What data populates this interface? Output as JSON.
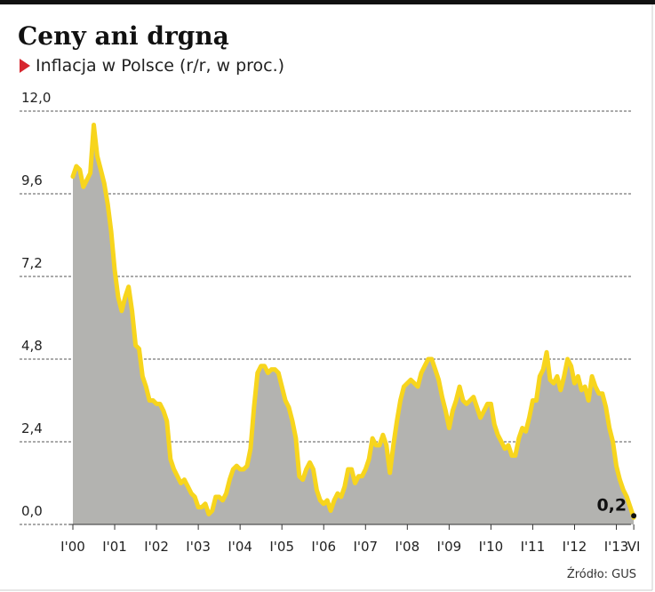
{
  "chart_data": {
    "type": "area-line",
    "title": "Ceny ani drgną",
    "subtitle": "Inflacja w Polsce (r/r, w proc.)",
    "source": "Źródło: GUS",
    "categories": [
      "I'00",
      null,
      null,
      null,
      null,
      null,
      null,
      null,
      null,
      null,
      null,
      null,
      "I'01",
      null,
      null,
      null,
      null,
      null,
      null,
      null,
      null,
      null,
      null,
      null,
      "I'02",
      null,
      null,
      null,
      null,
      null,
      null,
      null,
      null,
      null,
      null,
      null,
      "I'03",
      null,
      null,
      null,
      null,
      null,
      null,
      null,
      null,
      null,
      null,
      null,
      "I'04",
      null,
      null,
      null,
      null,
      null,
      null,
      null,
      null,
      null,
      null,
      null,
      "I'05",
      null,
      null,
      null,
      null,
      null,
      null,
      null,
      null,
      null,
      null,
      null,
      "I'06",
      null,
      null,
      null,
      null,
      null,
      null,
      null,
      null,
      null,
      null,
      null,
      "I'07",
      null,
      null,
      null,
      null,
      null,
      null,
      null,
      null,
      null,
      null,
      null,
      "I'08",
      null,
      null,
      null,
      null,
      null,
      null,
      null,
      null,
      null,
      null,
      null,
      "I'09",
      null,
      null,
      null,
      null,
      null,
      null,
      null,
      null,
      null,
      null,
      null,
      "I'10",
      null,
      null,
      null,
      null,
      null,
      null,
      null,
      null,
      null,
      null,
      null,
      "I'11",
      null,
      null,
      null,
      null,
      null,
      null,
      null,
      null,
      null,
      null,
      null,
      "I'12",
      null,
      null,
      null,
      null,
      null,
      null,
      null,
      null,
      null,
      null,
      null,
      "I'13",
      null,
      null,
      null,
      null,
      "VI"
    ],
    "series": [
      {
        "color": "#f7d51d",
        "fill": "#b3b3b0",
        "values": [
          10.1,
          10.4,
          10.3,
          9.8,
          10.0,
          10.2,
          11.6,
          10.7,
          10.3,
          9.9,
          9.3,
          8.5,
          7.4,
          6.6,
          6.2,
          6.6,
          6.9,
          6.2,
          5.2,
          5.1,
          4.3,
          4.0,
          3.6,
          3.6,
          3.5,
          3.5,
          3.3,
          3.0,
          1.9,
          1.6,
          1.4,
          1.2,
          1.3,
          1.1,
          0.9,
          0.8,
          0.5,
          0.5,
          0.6,
          0.3,
          0.4,
          0.8,
          0.8,
          0.7,
          0.9,
          1.3,
          1.6,
          1.7,
          1.6,
          1.6,
          1.7,
          2.2,
          3.4,
          4.4,
          4.6,
          4.6,
          4.4,
          4.5,
          4.5,
          4.4,
          4.0,
          3.6,
          3.4,
          3.0,
          2.5,
          1.4,
          1.3,
          1.6,
          1.8,
          1.6,
          1.0,
          0.7,
          0.6,
          0.7,
          0.4,
          0.7,
          0.9,
          0.8,
          1.1,
          1.6,
          1.6,
          1.2,
          1.4,
          1.4,
          1.6,
          1.9,
          2.5,
          2.3,
          2.3,
          2.6,
          2.3,
          1.5,
          2.3,
          3.0,
          3.6,
          4.0,
          4.1,
          4.2,
          4.1,
          4.0,
          4.4,
          4.6,
          4.8,
          4.8,
          4.5,
          4.2,
          3.7,
          3.3,
          2.8,
          3.3,
          3.6,
          4.0,
          3.6,
          3.5,
          3.6,
          3.7,
          3.4,
          3.1,
          3.3,
          3.5,
          3.5,
          2.9,
          2.6,
          2.4,
          2.2,
          2.3,
          2.0,
          2.0,
          2.5,
          2.8,
          2.7,
          3.1,
          3.6,
          3.6,
          4.3,
          4.5,
          5.0,
          4.2,
          4.1,
          4.3,
          3.9,
          4.3,
          4.8,
          4.6,
          4.1,
          4.3,
          3.9,
          4.0,
          3.6,
          4.3,
          4.0,
          3.8,
          3.8,
          3.4,
          2.8,
          2.4,
          1.7,
          1.3,
          1.0,
          0.8,
          0.5,
          0.2
        ],
        "value_labels": [
          null,
          null,
          null,
          null,
          null,
          null,
          null,
          null,
          null,
          null,
          null,
          null,
          null,
          null,
          null,
          null,
          null,
          null,
          null,
          null,
          null,
          null,
          null,
          null,
          null,
          null,
          null,
          null,
          null,
          null,
          null,
          null,
          null,
          null,
          null,
          null,
          null,
          null,
          null,
          null,
          null,
          null,
          null,
          null,
          null,
          null,
          null,
          null,
          null,
          null,
          null,
          null,
          null,
          null,
          null,
          null,
          null,
          null,
          null,
          null,
          null,
          null,
          null,
          null,
          null,
          null,
          null,
          null,
          null,
          null,
          null,
          null,
          null,
          null,
          null,
          null,
          null,
          null,
          null,
          null,
          null,
          null,
          null,
          null,
          null,
          null,
          null,
          null,
          null,
          null,
          null,
          null,
          null,
          null,
          null,
          null,
          null,
          null,
          null,
          null,
          null,
          null,
          null,
          null,
          null,
          null,
          null,
          null,
          null,
          null,
          null,
          null,
          null,
          null,
          null,
          null,
          null,
          null,
          null,
          null,
          null,
          null,
          null,
          null,
          null,
          null,
          null,
          null,
          null,
          null,
          null,
          null,
          null,
          null,
          null,
          null,
          null,
          null,
          null,
          null,
          null,
          null,
          null,
          null,
          null,
          null,
          null,
          null,
          null,
          null,
          null,
          null,
          null,
          null,
          null,
          null,
          null,
          null,
          null,
          null,
          null,
          "0,2"
        ]
      }
    ],
    "ylim": [
      0,
      12
    ],
    "yticks": [
      {
        "value": 0,
        "label": "0,0"
      },
      {
        "value": 2.4,
        "label": "2,4"
      },
      {
        "value": 4.8,
        "label": "4,8"
      },
      {
        "value": 7.2,
        "label": "7,2"
      },
      {
        "value": 9.6,
        "label": "9,6"
      },
      {
        "value": 12,
        "label": "12,0"
      }
    ],
    "grid": true
  }
}
